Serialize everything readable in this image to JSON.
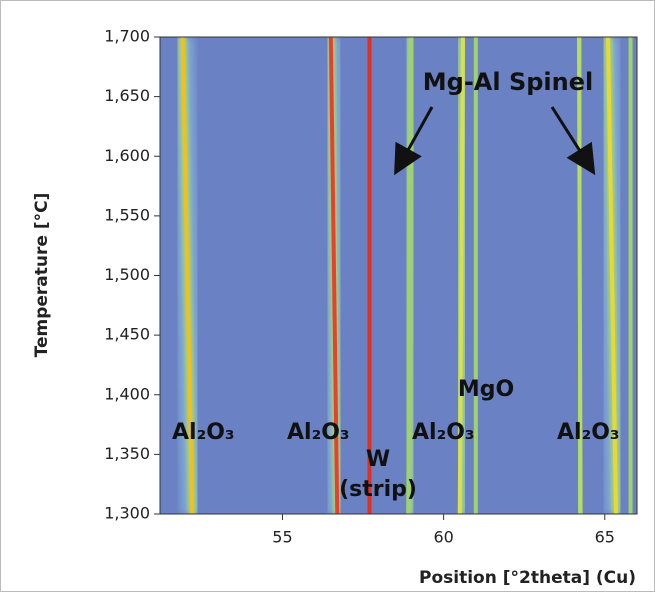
{
  "chart_data": {
    "type": "heatmap",
    "xlabel": "Position [°2theta] (Cu)",
    "ylabel": "Temperature [°C]",
    "xlim": [
      51.2,
      66.0
    ],
    "xticks": [
      55,
      60,
      65
    ],
    "ylim": [
      1300,
      1700
    ],
    "yticks": [
      {
        "value": 1300,
        "label": "1,300"
      },
      {
        "value": 1350,
        "label": "1,350"
      },
      {
        "value": 1400,
        "label": "1,400"
      },
      {
        "value": 1450,
        "label": "1,450"
      },
      {
        "value": 1500,
        "label": "1,500"
      },
      {
        "value": 1550,
        "label": "1,550"
      },
      {
        "value": 1600,
        "label": "1,600"
      },
      {
        "value": 1650,
        "label": "1,650"
      },
      {
        "value": 1700,
        "label": "1,700"
      }
    ],
    "background": "#6a82c4",
    "y": [
      1300,
      1700
    ],
    "series": [
      {
        "color": "#f0c020",
        "values": [
          52.2,
          51.9
        ]
      },
      {
        "color": "#e8402a",
        "values": [
          56.7,
          56.5
        ]
      },
      {
        "color": "#e03020",
        "values": [
          57.7,
          57.7
        ]
      },
      {
        "color": "#9fd36a",
        "values": [
          58.9,
          59.0
        ]
      },
      {
        "color": "#d8e050",
        "values": [
          60.5,
          60.6
        ]
      },
      {
        "color": "#9fd36a",
        "values": [
          61.0,
          61.0
        ]
      },
      {
        "color": "#b8dc60",
        "values": [
          64.25,
          64.2
        ]
      },
      {
        "color": "#e8d830",
        "values": [
          65.35,
          65.1
        ]
      },
      {
        "color": "#9fd36a",
        "values": [
          65.8,
          65.8
        ]
      }
    ],
    "annotations": [
      "Mg-Al Spinel",
      "Al₂O₃",
      "Al₂O₃",
      "Al₂O₃",
      "Al₂O₃",
      "MgO",
      "W",
      "(strip)"
    ]
  }
}
